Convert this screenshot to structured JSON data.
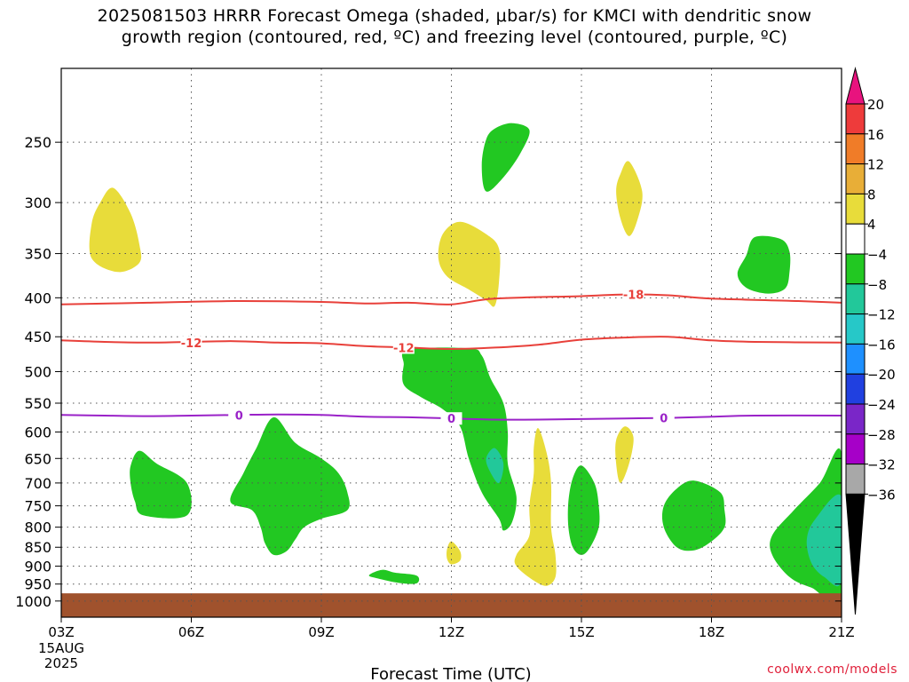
{
  "title": {
    "line1": "2025081503 HRRR Forecast Omega (shaded, μbar/s) for KMCI with dendritic snow",
    "line2": "growth region (contoured, red, ºC) and freezing level (contoured, purple, ºC)"
  },
  "credit": "coolwx.com/models",
  "chart_data": {
    "type": "time-height contour",
    "title": "2025081503 HRRR Forecast Omega (shaded, μbar/s) for KMCI with dendritic snow growth region (contoured, red, ºC) and freezing level (contoured, purple, ºC)",
    "xlabel": "Forecast Time (UTC)",
    "ylabel": "",
    "x_ticks": [
      {
        "hour": 3,
        "label": "03Z",
        "sub": [
          "15AUG",
          "2025"
        ]
      },
      {
        "hour": 6,
        "label": "06Z"
      },
      {
        "hour": 9,
        "label": "09Z"
      },
      {
        "hour": 12,
        "label": "12Z"
      },
      {
        "hour": 15,
        "label": "15Z"
      },
      {
        "hour": 18,
        "label": "18Z"
      },
      {
        "hour": 21,
        "label": "21Z"
      }
    ],
    "xlim": [
      3,
      21
    ],
    "y_ticks": [
      250,
      300,
      350,
      400,
      450,
      500,
      550,
      600,
      650,
      700,
      750,
      800,
      850,
      900,
      950,
      1000
    ],
    "ylim": [
      1050,
      200
    ],
    "y_scale": "log-pressure (inverted)",
    "grid": "dotted",
    "ground_fill": {
      "from_hpa": 977,
      "color": "#a0522d"
    },
    "colorbar": {
      "labels": [
        "20",
        "16",
        "12",
        "8",
        "4",
        "−4",
        "−8",
        "−12",
        "−16",
        "−20",
        "−24",
        "−28",
        "−32",
        "−36"
      ],
      "colors": [
        "#e8137e",
        "#ee3b3b",
        "#f07c28",
        "#e8ae37",
        "#e8dc3a",
        "#ffffff",
        "#22c822",
        "#22c89a",
        "#26c8c8",
        "#1e90ff",
        "#2040e0",
        "#7a26c8",
        "#a600c8",
        "#a8a8a8",
        "#000000"
      ]
    },
    "colors": {
      "dgz_contour": "#e8403a",
      "freezing_contour": "#9a22c8",
      "grid": "#555555"
    },
    "contours": [
      {
        "name": "-18",
        "value": "-18",
        "color": "dgz",
        "points": [
          [
            3,
            408
          ],
          [
            5,
            406
          ],
          [
            7,
            404
          ],
          [
            9,
            405
          ],
          [
            10,
            407
          ],
          [
            11,
            406
          ],
          [
            12,
            408
          ],
          [
            13,
            401
          ],
          [
            15,
            398
          ],
          [
            16,
            396
          ],
          [
            17,
            397
          ],
          [
            18,
            401
          ],
          [
            20,
            404
          ],
          [
            21,
            406
          ]
        ],
        "label_at": {
          "hour": 16.2,
          "hpa": 396,
          "text": "-18"
        }
      },
      {
        "name": "-12",
        "value": "-12",
        "color": "dgz",
        "points": [
          [
            3,
            455
          ],
          [
            4,
            457
          ],
          [
            5,
            458
          ],
          [
            6,
            457
          ],
          [
            7,
            456
          ],
          [
            8,
            458
          ],
          [
            9,
            459
          ],
          [
            10,
            463
          ],
          [
            11,
            465
          ],
          [
            12,
            467
          ],
          [
            13,
            465
          ],
          [
            14,
            461
          ],
          [
            15,
            454
          ],
          [
            16,
            451
          ],
          [
            17,
            450
          ],
          [
            18,
            455
          ],
          [
            19,
            457
          ],
          [
            21,
            458
          ]
        ],
        "label_at": {
          "hour": 6.0,
          "hpa": 458,
          "text": "-12"
        },
        "label_at2": {
          "hour": 10.9,
          "hpa": 465,
          "text": "-12"
        }
      },
      {
        "name": "0",
        "value": "0",
        "color": "freezing",
        "points": [
          [
            3,
            570
          ],
          [
            4,
            571
          ],
          [
            5,
            572
          ],
          [
            6,
            571
          ],
          [
            7,
            570
          ],
          [
            8,
            569
          ],
          [
            9,
            570
          ],
          [
            10,
            573
          ],
          [
            11,
            574
          ],
          [
            12,
            576
          ],
          [
            13,
            578
          ],
          [
            14,
            578
          ],
          [
            15,
            577
          ],
          [
            16,
            576
          ],
          [
            17,
            575
          ],
          [
            18,
            573
          ],
          [
            19,
            571
          ],
          [
            21,
            571
          ]
        ],
        "label_at": {
          "hour": 7.1,
          "hpa": 570,
          "text": "0"
        },
        "label_at2": {
          "hour": 12.0,
          "hpa": 576,
          "text": "0"
        },
        "label_at3": {
          "hour": 16.9,
          "hpa": 575,
          "text": "0"
        }
      }
    ],
    "omega_regions": [
      {
        "name": "upward-4-8-a",
        "band": "-4 to -8",
        "points": [
          [
            13.8,
            241
          ],
          [
            13.6,
            258
          ],
          [
            13.2,
            278
          ],
          [
            12.8,
            290
          ],
          [
            12.7,
            268
          ],
          [
            12.8,
            248
          ],
          [
            13.0,
            240
          ],
          [
            13.4,
            236
          ]
        ]
      },
      {
        "name": "upward-4-8-b",
        "band": "-4 to -8",
        "points": [
          [
            19.0,
            333
          ],
          [
            19.6,
            335
          ],
          [
            19.8,
            348
          ],
          [
            19.8,
            370
          ],
          [
            19.7,
            389
          ],
          [
            19.3,
            395
          ],
          [
            18.8,
            388
          ],
          [
            18.6,
            372
          ],
          [
            18.8,
            352
          ]
        ]
      },
      {
        "name": "upward-4-8-c",
        "band": "-4 to -8",
        "points": [
          [
            11.0,
            468
          ],
          [
            12.4,
            466
          ],
          [
            12.7,
            476
          ],
          [
            12.9,
            510
          ],
          [
            13.2,
            550
          ],
          [
            13.3,
            600
          ],
          [
            13.3,
            660
          ],
          [
            13.5,
            730
          ],
          [
            13.4,
            788
          ],
          [
            13.2,
            808
          ],
          [
            13.1,
            780
          ],
          [
            12.7,
            720
          ],
          [
            12.4,
            650
          ],
          [
            12.2,
            590
          ],
          [
            11.8,
            560
          ],
          [
            11.3,
            540
          ],
          [
            10.9,
            520
          ],
          [
            10.9,
            490
          ]
        ]
      },
      {
        "name": "upward-4-8-d",
        "band": "-4 to -8",
        "points": [
          [
            4.8,
            635
          ],
          [
            5.2,
            660
          ],
          [
            5.9,
            700
          ],
          [
            5.9,
            772
          ],
          [
            4.9,
            772
          ],
          [
            4.7,
            740
          ],
          [
            4.6,
            700
          ],
          [
            4.6,
            665
          ]
        ]
      },
      {
        "name": "upward-4-8-e",
        "band": "-4 to -8",
        "points": [
          [
            7.9,
            574
          ],
          [
            8.4,
            620
          ],
          [
            9.0,
            650
          ],
          [
            9.4,
            680
          ],
          [
            9.6,
            720
          ],
          [
            9.6,
            760
          ],
          [
            9.0,
            780
          ],
          [
            8.6,
            800
          ],
          [
            8.4,
            830
          ],
          [
            8.2,
            860
          ],
          [
            7.9,
            870
          ],
          [
            7.7,
            840
          ],
          [
            7.6,
            800
          ],
          [
            7.4,
            760
          ],
          [
            6.9,
            740
          ],
          [
            7.2,
            680
          ],
          [
            7.5,
            630
          ]
        ]
      },
      {
        "name": "upward-4-8-f",
        "band": "-4 to -8",
        "points": [
          [
            10.4,
            910
          ],
          [
            10.7,
            918
          ],
          [
            11.2,
            926
          ],
          [
            11.2,
            948
          ],
          [
            10.8,
            947
          ],
          [
            10.3,
            934
          ],
          [
            10.1,
            925
          ]
        ]
      },
      {
        "name": "upward-4-8-g",
        "band": "-4 to -8",
        "points": [
          [
            15.0,
            664
          ],
          [
            15.3,
            700
          ],
          [
            15.4,
            750
          ],
          [
            15.4,
            800
          ],
          [
            15.2,
            850
          ],
          [
            15.0,
            870
          ],
          [
            14.8,
            850
          ],
          [
            14.7,
            800
          ],
          [
            14.7,
            740
          ],
          [
            14.8,
            690
          ]
        ]
      },
      {
        "name": "upward-4-8-h",
        "band": "-4 to -8",
        "points": [
          [
            17.6,
            695
          ],
          [
            18.2,
            720
          ],
          [
            18.3,
            760
          ],
          [
            18.3,
            800
          ],
          [
            18.0,
            835
          ],
          [
            17.6,
            858
          ],
          [
            17.2,
            850
          ],
          [
            16.9,
            800
          ],
          [
            16.9,
            750
          ],
          [
            17.2,
            712
          ]
        ]
      },
      {
        "name": "upward-4-8-i",
        "band": "-4 to -8",
        "points": [
          [
            21.0,
            640
          ],
          [
            20.5,
            700
          ],
          [
            19.9,
            760
          ],
          [
            19.4,
            820
          ],
          [
            19.4,
            870
          ],
          [
            19.8,
            930
          ],
          [
            20.3,
            960
          ],
          [
            21.0,
            980
          ]
        ]
      },
      {
        "name": "upward-8-12-a",
        "band": "-8 to -12",
        "points": [
          [
            13.0,
            630
          ],
          [
            13.2,
            660
          ],
          [
            13.1,
            700
          ],
          [
            12.9,
            678
          ],
          [
            12.8,
            650
          ]
        ]
      },
      {
        "name": "upward-8-12-b",
        "band": "-8 to -12",
        "points": [
          [
            21.0,
            730
          ],
          [
            20.4,
            780
          ],
          [
            20.2,
            830
          ],
          [
            20.3,
            890
          ],
          [
            20.6,
            930
          ],
          [
            21.0,
            940
          ]
        ]
      },
      {
        "name": "downward-4-8-a",
        "band": "4 to 8",
        "points": [
          [
            4.2,
            287
          ],
          [
            4.6,
            310
          ],
          [
            4.8,
            340
          ],
          [
            4.8,
            360
          ],
          [
            4.3,
            370
          ],
          [
            3.7,
            355
          ],
          [
            3.7,
            320
          ],
          [
            3.9,
            300
          ]
        ]
      },
      {
        "name": "downward-4-8-b",
        "band": "4 to 8",
        "points": [
          [
            12.2,
            318
          ],
          [
            12.8,
            330
          ],
          [
            13.1,
            345
          ],
          [
            13.1,
            380
          ],
          [
            13.0,
            410
          ],
          [
            12.8,
            403
          ],
          [
            12.4,
            390
          ],
          [
            11.9,
            375
          ],
          [
            11.7,
            355
          ],
          [
            11.8,
            330
          ]
        ]
      },
      {
        "name": "downward-4-8-c",
        "band": "4 to 8",
        "points": [
          [
            16.1,
            265
          ],
          [
            16.4,
            290
          ],
          [
            16.3,
            315
          ],
          [
            16.1,
            332
          ],
          [
            15.9,
            315
          ],
          [
            15.8,
            290
          ],
          [
            15.9,
            275
          ]
        ]
      },
      {
        "name": "downward-4-8-d",
        "band": "4 to 8",
        "points": [
          [
            16.0,
            590
          ],
          [
            16.2,
            610
          ],
          [
            16.1,
            660
          ],
          [
            15.9,
            700
          ],
          [
            15.8,
            660
          ],
          [
            15.8,
            615
          ]
        ]
      },
      {
        "name": "downward-4-8-e",
        "band": "4 to 8",
        "points": [
          [
            14.0,
            593
          ],
          [
            14.2,
            640
          ],
          [
            14.3,
            700
          ],
          [
            14.3,
            800
          ],
          [
            14.4,
            870
          ],
          [
            14.4,
            930
          ],
          [
            14.2,
            955
          ],
          [
            13.9,
            940
          ],
          [
            13.5,
            900
          ],
          [
            13.5,
            870
          ],
          [
            13.8,
            820
          ],
          [
            13.8,
            750
          ],
          [
            13.9,
            680
          ],
          [
            13.9,
            630
          ]
        ]
      },
      {
        "name": "downward-4-8-f",
        "band": "4 to 8",
        "points": [
          [
            12.0,
            835
          ],
          [
            12.2,
            860
          ],
          [
            12.2,
            885
          ],
          [
            12.0,
            895
          ],
          [
            11.9,
            880
          ],
          [
            11.9,
            855
          ]
        ]
      }
    ]
  }
}
